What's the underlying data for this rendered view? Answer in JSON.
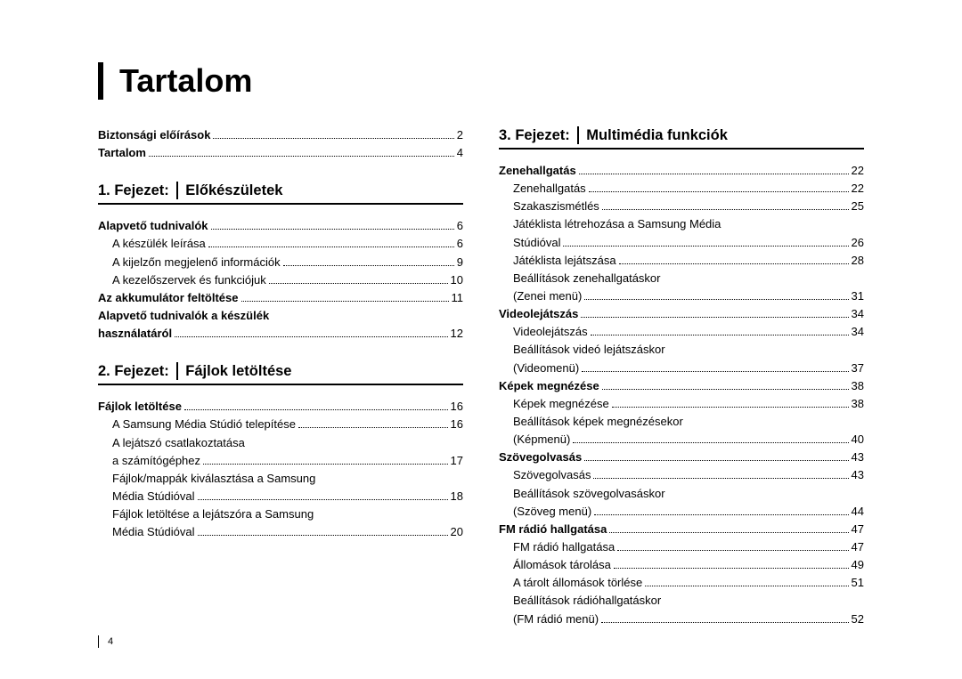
{
  "title": "Tartalom",
  "page_number": "4",
  "columns": [
    {
      "blocks": [
        {
          "type": "items",
          "items": [
            {
              "label": "Biztonsági előírások",
              "page": "2",
              "bold": true,
              "indent": 0
            },
            {
              "label": "Tartalom",
              "page": "4",
              "bold": true,
              "indent": 0
            }
          ]
        },
        {
          "type": "chapter",
          "num": "1. Fejezet:",
          "name": "Előkészületek"
        },
        {
          "type": "items",
          "items": [
            {
              "label": "Alapvető tudnivalók",
              "page": "6",
              "bold": true,
              "indent": 0
            },
            {
              "label": "A készülék leírása",
              "page": "6",
              "bold": false,
              "indent": 1
            },
            {
              "label": "A kijelzőn megjelenő információk",
              "page": "9",
              "bold": false,
              "indent": 1
            },
            {
              "label": "A kezelőszervek és funkciójuk",
              "page": "10",
              "bold": false,
              "indent": 1
            },
            {
              "label": "Az akkumulátor feltöltése",
              "page": "11",
              "bold": true,
              "indent": 0
            },
            {
              "label": "Alapvető tudnivalók a készülék",
              "page": "",
              "bold": true,
              "indent": 0,
              "nopage": true
            },
            {
              "label": "használatáról",
              "page": "12",
              "bold": true,
              "indent": 0
            }
          ]
        },
        {
          "type": "chapter",
          "num": "2. Fejezet:",
          "name": "Fájlok letöltése"
        },
        {
          "type": "items",
          "items": [
            {
              "label": "Fájlok letöltése",
              "page": "16",
              "bold": true,
              "indent": 0
            },
            {
              "label": "A Samsung Média Stúdió telepítése",
              "page": "16",
              "bold": false,
              "indent": 1
            },
            {
              "label": "A lejátszó csatlakoztatása",
              "page": "",
              "bold": false,
              "indent": 1,
              "nopage": true
            },
            {
              "label": "a számítógéphez",
              "page": "17",
              "bold": false,
              "indent": 1
            },
            {
              "label": "Fájlok/mappák kiválasztása a Samsung",
              "page": "",
              "bold": false,
              "indent": 1,
              "nopage": true
            },
            {
              "label": "Média Stúdióval",
              "page": "18",
              "bold": false,
              "indent": 1
            },
            {
              "label": "Fájlok letöltése a lejátszóra a Samsung",
              "page": "",
              "bold": false,
              "indent": 1,
              "nopage": true
            },
            {
              "label": "Média Stúdióval",
              "page": "20",
              "bold": false,
              "indent": 1
            }
          ]
        }
      ]
    },
    {
      "blocks": [
        {
          "type": "chapter",
          "num": "3. Fejezet:",
          "name": "Multimédia funkciók",
          "first": true
        },
        {
          "type": "items",
          "items": [
            {
              "label": "Zenehallgatás",
              "page": "22",
              "bold": true,
              "indent": 0
            },
            {
              "label": "Zenehallgatás",
              "page": "22",
              "bold": false,
              "indent": 1
            },
            {
              "label": "Szakaszismétlés",
              "page": "25",
              "bold": false,
              "indent": 1
            },
            {
              "label": "Játéklista létrehozása a Samsung Média",
              "page": "",
              "bold": false,
              "indent": 1,
              "nopage": true
            },
            {
              "label": "Stúdióval",
              "page": "26",
              "bold": false,
              "indent": 1
            },
            {
              "label": "Játéklista lejátszása",
              "page": "28",
              "bold": false,
              "indent": 1
            },
            {
              "label": "Beállítások zenehallgatáskor",
              "page": "",
              "bold": false,
              "indent": 1,
              "nopage": true
            },
            {
              "label": "(Zenei menü)",
              "page": "31",
              "bold": false,
              "indent": 1
            },
            {
              "label": "Videolejátszás",
              "page": "34",
              "bold": true,
              "indent": 0
            },
            {
              "label": "Videolejátszás",
              "page": "34",
              "bold": false,
              "indent": 1
            },
            {
              "label": "Beállítások videó lejátszáskor",
              "page": "",
              "bold": false,
              "indent": 1,
              "nopage": true
            },
            {
              "label": "(Videomenü)",
              "page": "37",
              "bold": false,
              "indent": 1
            },
            {
              "label": "Képek megnézése",
              "page": "38",
              "bold": true,
              "indent": 0
            },
            {
              "label": "Képek megnézése",
              "page": "38",
              "bold": false,
              "indent": 1
            },
            {
              "label": "Beállítások képek megnézésekor",
              "page": "",
              "bold": false,
              "indent": 1,
              "nopage": true
            },
            {
              "label": "(Képmenü)",
              "page": "40",
              "bold": false,
              "indent": 1
            },
            {
              "label": "Szövegolvasás",
              "page": "43",
              "bold": true,
              "indent": 0
            },
            {
              "label": "Szövegolvasás",
              "page": "43",
              "bold": false,
              "indent": 1
            },
            {
              "label": "Beállítások szövegolvasáskor",
              "page": "",
              "bold": false,
              "indent": 1,
              "nopage": true
            },
            {
              "label": "(Szöveg menü)",
              "page": "44",
              "bold": false,
              "indent": 1
            },
            {
              "label": "FM rádió hallgatása",
              "page": "47",
              "bold": true,
              "indent": 0
            },
            {
              "label": "FM rádió hallgatása",
              "page": "47",
              "bold": false,
              "indent": 1
            },
            {
              "label": "Állomások tárolása",
              "page": "49",
              "bold": false,
              "indent": 1
            },
            {
              "label": "A tárolt állomások törlése",
              "page": "51",
              "bold": false,
              "indent": 1
            },
            {
              "label": "Beállítások rádióhallgatáskor",
              "page": "",
              "bold": false,
              "indent": 1,
              "nopage": true
            },
            {
              "label": "(FM rádió menü)",
              "page": "52",
              "bold": false,
              "indent": 1
            }
          ]
        }
      ]
    }
  ]
}
